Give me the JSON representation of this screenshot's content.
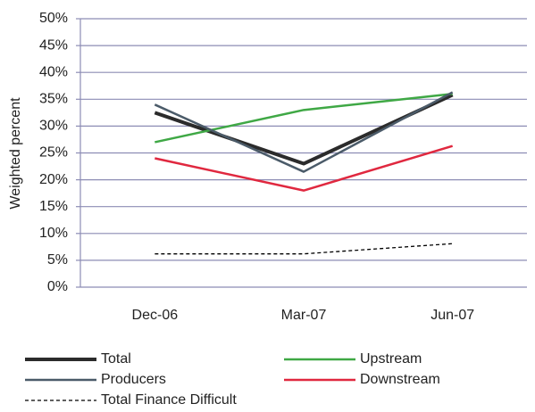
{
  "chart_data": {
    "type": "line",
    "y_axis_label": "Weighted percent",
    "categories": [
      "Dec-06",
      "Mar-07",
      "Jun-07"
    ],
    "series": [
      {
        "name": "Total",
        "color": "#2b2b2b",
        "line_width": 4,
        "dashed": false,
        "values": [
          32.5,
          23,
          35.8
        ]
      },
      {
        "name": "Upstream",
        "color": "#3fa845",
        "line_width": 2.5,
        "dashed": false,
        "values": [
          27,
          33,
          36
        ]
      },
      {
        "name": "Producers",
        "color": "#4b5b69",
        "line_width": 2.5,
        "dashed": false,
        "values": [
          34,
          21.5,
          36.3
        ]
      },
      {
        "name": "Downstream",
        "color": "#e0283f",
        "line_width": 2.5,
        "dashed": false,
        "values": [
          24,
          18,
          26.3
        ]
      },
      {
        "name": "Total Finance Difficult",
        "color": "#000000",
        "line_width": 1.3,
        "dashed": true,
        "values": [
          6.2,
          6.2,
          8.1
        ]
      }
    ],
    "ylim": [
      0,
      50
    ],
    "yticks": [
      {
        "value": 0,
        "label": "0%"
      },
      {
        "value": 5,
        "label": "5%"
      },
      {
        "value": 10,
        "label": "10%"
      },
      {
        "value": 15,
        "label": "15%"
      },
      {
        "value": 20,
        "label": "20%"
      },
      {
        "value": 25,
        "label": "25%"
      },
      {
        "value": 30,
        "label": "30%"
      },
      {
        "value": 35,
        "label": "35%"
      },
      {
        "value": 40,
        "label": "40%"
      },
      {
        "value": 45,
        "label": "45%"
      },
      {
        "value": 50,
        "label": "50%"
      }
    ],
    "grid": true
  }
}
